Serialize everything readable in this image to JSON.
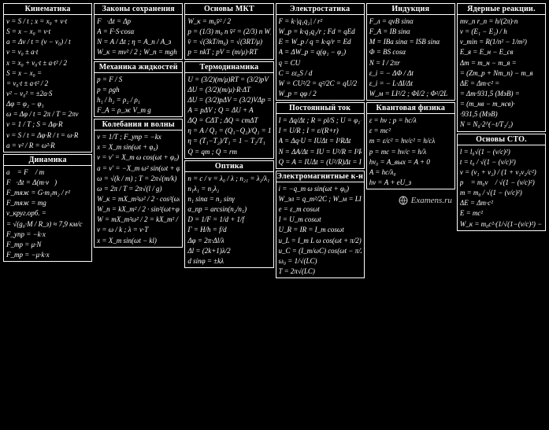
{
  "logo_text": "Examens.ru",
  "columns": [
    {
      "sections": [
        {
          "title": "Кинематика",
          "formulas": [
            "v = S / t ; x = x₀ + v·t",
            "S = x − x₀ = v·t",
            "a = Δv / t = (v − v₀) / t",
            "v = v₀ ± a·t",
            "x = x₀ + v₀·t ± a·t² / 2",
            "S = x − x₀ =",
            "= v₀·t ± a·t² / 2",
            "v² − v₀² = ±2a·S",
            "Δφ = φ₂ − φ₁",
            "ω = Δφ / t = 2π / T = 2πν",
            "ν = 1 / T ;  S = Δφ·R",
            "v = S / t = Δφ·R / t = ω·R",
            "a = v² / R = ω²·R"
          ]
        },
        {
          "title": "Динамика",
          "formulas": [
            "a⃗ = F⃗ / m",
            "F⃗·Δt = Δ(m·v⃗)",
            "F_тяж = G·m₁m₂ / r²",
            "F_тяж = mg",
            "v_круг.орб. =",
            "= √(g₀·M / R_з) ≈ 7,9 км/с",
            "F_упр = −k·x",
            "F_тр = μ·N",
            "F_тр = −μ·k·x"
          ]
        }
      ]
    },
    {
      "sections": [
        {
          "title": "Законы сохранения",
          "formulas": [
            "F⃗·Δt = Δp⃗",
            "A = F·S·cosα",
            "N = A / Δt ;  η = A_п / A_з",
            "W_к = mv² / 2 ; W_п = mgh"
          ]
        },
        {
          "title": "Механика жидкостей",
          "formulas": [
            "p = F / S",
            "p = ρgh",
            "h₁ / h₂ = ρ₂ / ρ₁",
            "F_A = ρ_ж V_т g"
          ]
        },
        {
          "title": "Колебания и волны",
          "formulas": [
            "ν = 1/T ; F_упр = −kx",
            "x = X_m sin(ωt + φ₀)",
            "v = v' = X_m ω cos(ωt + φ₀)",
            "a = v' = −X_m ω² sin(ωt + φ₀)",
            "ω = √(k / m) ; T = 2π√(m/k)",
            "ω = 2π / T = 2π√(l / g)",
            "W_к = mX_m²ω² / 2 · cos²(ωt+φ₀)",
            "W_п = kX_m² / 2 · sin²(ωt+φ₀)",
            "W = mX_m²ω² / 2 = kX_m² / 2",
            "v = ω / k ;  λ = v·T",
            "x = X_m sin(ωt − kl)"
          ]
        }
      ]
    },
    {
      "sections": [
        {
          "title": "Основы МКТ",
          "formulas": [
            "W_к = m₀v̄² / 2",
            "p = (1/3) m₀ n v̄² = (2/3) n W_к = (2/3) n·(3/2)kT",
            "v̄ = √(3kT/m₀) = √(3RT/μ)",
            "p = nkT ; pV = (m/μ)·RT"
          ]
        },
        {
          "title": "Термодинамика",
          "formulas": [
            "U = (3/2)(m/μ)RT = (3/2)pV",
            "ΔU = (3/2)(m/μ)·R·ΔT",
            "ΔU = (3/2)pΔV = (3/2)VΔp = (3/2)ΔpV",
            "A = pΔV ; Q = ΔU + A",
            "ΔQ = CΔT ; ΔQ = cmΔT",
            "η = A / Q₁ = (Q₁−Q₂)/Q₁ = 1 − Q₂/Q₁",
            "η = (T₁−T₂)/T₁ = 1 − T₂/T₁",
            "Q = qm ; Q = rm"
          ]
        },
        {
          "title": "Оптика",
          "formulas": [
            "n = c / v = λ₀ / λ ; n₂₁ = λ₂/λ₁",
            "n₁λ₁ = n₂λ₂",
            "n₁ sinα = n₂ sinγ",
            "α_пр = arcsin(n₂/n₁)",
            "D = 1/F = 1/d + 1/f",
            "Γ = H/h = f/d",
            "Δφ = 2π·Δl/λ",
            "Δl = (2k+1)λ/2",
            "d sinφ = ±kλ"
          ]
        }
      ]
    },
    {
      "sections": [
        {
          "title": "Электростатика",
          "formulas": [
            "F = k·|q₁q₂| / r²",
            "W_p = k·q₁q₂/r ; Fd = qEd",
            "E = W_p / q = k·q/r = Ed",
            "A = ΔW_p = q(φ₁ − φ₂)",
            "q = CU",
            "C = εε₀S / d",
            "W = CU²/2 = q²/2C = qU/2",
            "W_p = qφ / 2"
          ]
        },
        {
          "title": "Постоянный ток",
          "formulas": [
            "I = Δq/Δt ; R = ρl/S ; U = φ₁−φ₂",
            "I = U/R ; I = ε/(R+r)",
            "A = Δq·U = IUΔt = I²RΔt",
            "N = ΔA/Δt = IU = U²/R = I²R",
            "Q = A = IUΔt = (U²/R)Δt = I²RΔt"
          ]
        },
        {
          "title": "Электромагнитные к-н",
          "formulas": [
            "i = −q_m ω sin(ωt + φ₀)",
            "W_эл = q_m²/2C ; W_м = LI²/2",
            "e = ε_m cosωt",
            "I = U_m cosωt",
            "U_R = IR = I_m cosωt",
            "u_L = I_m L ω cos(ωt + π/2)",
            "u_C = (I_m/ωC) cos(ωt − π/2)",
            "ω₀ = 1/√(LC)",
            "T = 2π√(LC)"
          ]
        }
      ]
    },
    {
      "sections": [
        {
          "title": "Индукция",
          "formulas": [
            "F_л = qvB sinα",
            "F_A = IB sinα",
            "M = IBa sinα = ISB sinα",
            "Φ = BS cosα",
            "N = I / 2πr",
            "ε_i = − ΔΦ / Δt",
            "ε_i = − L·ΔI/Δt",
            "W_м = LI²/2 ; ΦI/2 ; Φ²/2L"
          ]
        },
        {
          "title": "Квантовая физика",
          "formulas": [
            "ε = hν ; p = hc/λ",
            "ε = mc²",
            "m = ε/c² = hν/c² = h/cλ",
            "p = mc = hν/c = h/λ",
            "hν₀ = A_вых = A + 0",
            "A = hc/λ₀",
            "hν = A + eU_з"
          ]
        }
      ]
    },
    {
      "sections": [
        {
          "title": "Ядерные реакции.",
          "formulas": [
            "mv_n r_n = h/(2π)·n",
            "ν = (E₁ − E₂) / h",
            "v_min = R(1/n² − 1/m²)",
            "E_я = E_н − E_св",
            "Δm = m_н − m_я =",
            "= (Zm_p + Nm_n) − m_я",
            "ΔE = Δm·c² =",
            "= Δm·931,5 (МэВ) =",
            "= (m_нв − m_нсв)·",
            "·931,5 (МэВ)",
            "N = N₀·2^(−t/T₁/₂)"
          ]
        },
        {
          "title": "Основы СТО.",
          "formulas": [
            "l = l₀√(1 − (v/c)²)",
            "t = t₀ / √(1 − (v/c)²)",
            "v = (v₁ + v₂) / (1 + v₁v₂/c²)",
            "p⃗ = m₀v⃗ / √(1 − (v/c)²)",
            "m = m₀ / √(1 − (v/c)²)",
            "ΔE = Δm·c²",
            "E = mc²",
            "W_к = m₀c²·(1/√(1−(v/c)²) − 1)"
          ]
        }
      ]
    }
  ]
}
